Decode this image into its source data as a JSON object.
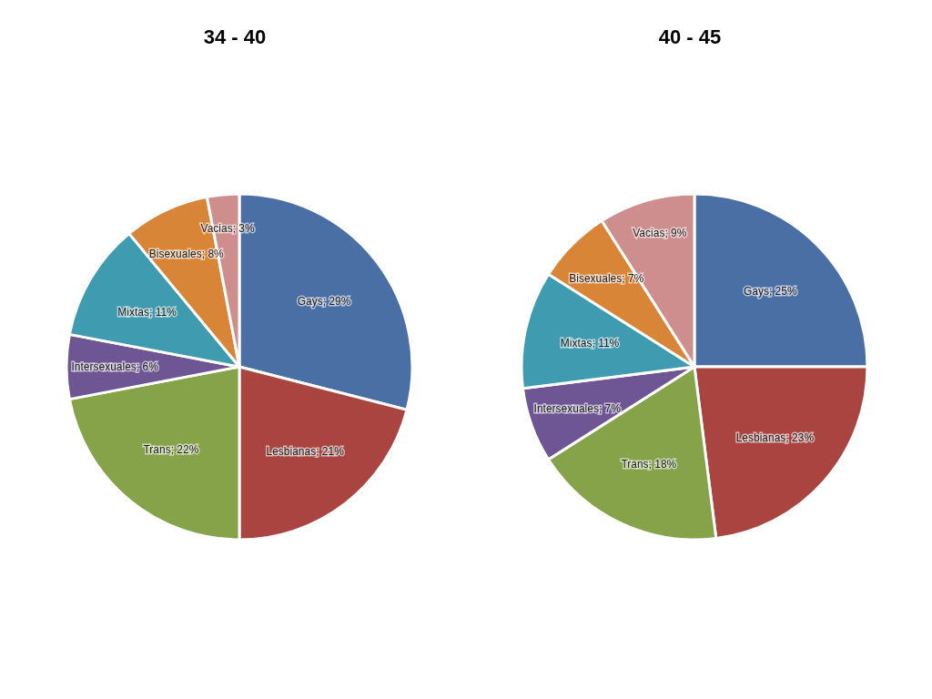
{
  "chart_data": [
    {
      "type": "pie",
      "title": "34 - 40",
      "categories": [
        null,
        null,
        null,
        null,
        null,
        null,
        null
      ],
      "values": [
        29,
        21,
        22,
        6,
        11,
        8,
        3
      ],
      "colors": [
        "#4a6fa5",
        "#a94441",
        "#86a34a",
        "#6e5594",
        "#3e9bb0",
        "#d98538",
        "#cf8e8e"
      ],
      "value_labels": [
        "Gays; 29%",
        "Lesbianas; 21%",
        "Trans; 22%",
        "Intersexuales; 6%",
        "Mixtas; 11%",
        "Bisexuales; 8%",
        "Vacias; 3%"
      ]
    },
    {
      "type": "pie",
      "title": "40 - 45",
      "categories": [
        null,
        null,
        null,
        null,
        null,
        null,
        null
      ],
      "values": [
        25,
        23,
        18,
        7,
        11,
        7,
        9
      ],
      "colors": [
        "#4a6fa5",
        "#a94441",
        "#86a34a",
        "#6e5594",
        "#3e9bb0",
        "#d98538",
        "#cf8e8e"
      ],
      "value_labels": [
        "Gays; 25%",
        "Lesbianas; 23%",
        "Trans; 18%",
        "Intersexuales; 7%",
        "Mixtas; 11%",
        "Bisexuales; 7%",
        "Vacias; 9%"
      ]
    }
  ]
}
